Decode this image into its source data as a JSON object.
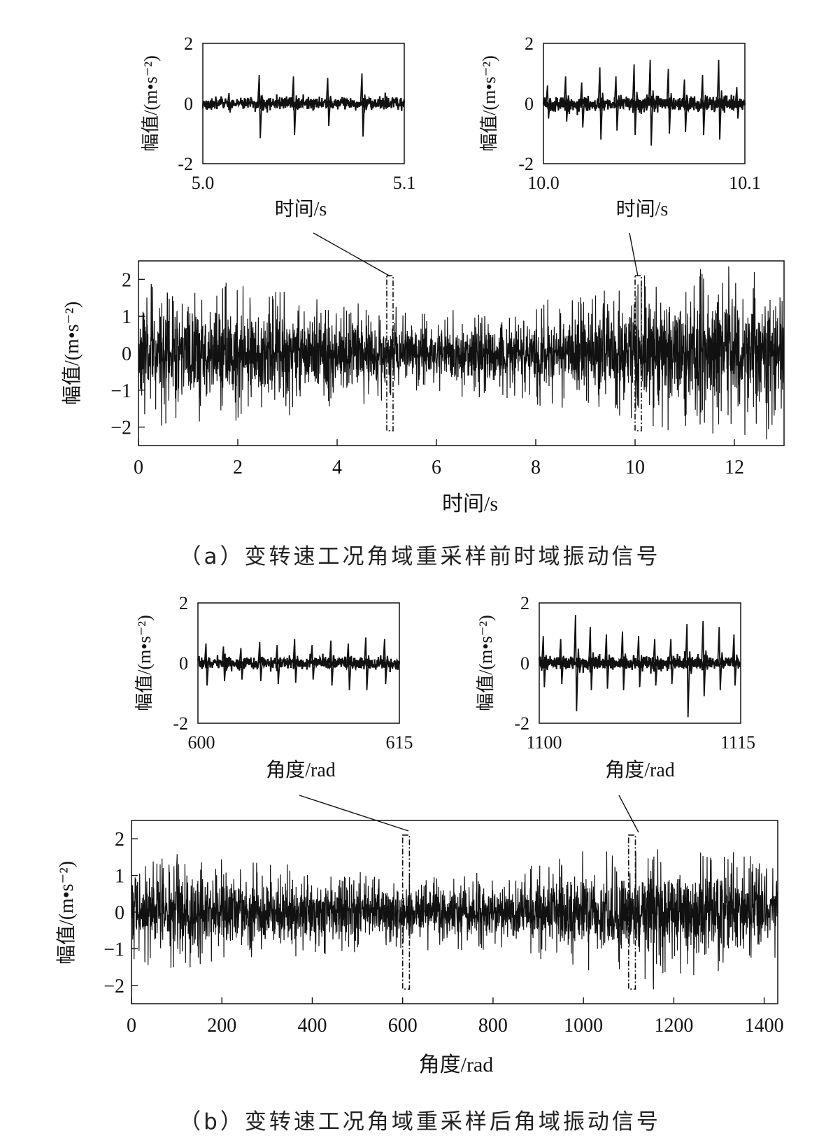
{
  "panels": [
    {
      "id": "a",
      "caption": "（a）变转速工况角域重采样前时域振动信号",
      "main": {
        "type": "line",
        "xlabel": "时间/s",
        "ylabel": "幅值/(m•s⁻²)",
        "xlim": [
          0,
          13
        ],
        "ylim": [
          -2.5,
          2.5
        ],
        "xticks": [
          0,
          2,
          4,
          6,
          8,
          10,
          12
        ],
        "yticks": [
          -2,
          -1,
          0,
          1,
          2
        ],
        "highlight_windows": [
          [
            5.0,
            5.1
          ],
          [
            10.0,
            10.1
          ]
        ],
        "envelope": {
          "x": [
            0,
            1,
            2,
            3,
            4,
            5,
            6,
            7,
            8,
            9,
            10,
            11,
            12,
            13
          ],
          "amplitude": [
            1.45,
            1.5,
            1.4,
            1.25,
            1.1,
            0.95,
            0.85,
            0.9,
            1.05,
            1.25,
            1.45,
            1.65,
            1.8,
            1.9
          ]
        }
      },
      "insets": [
        {
          "type": "line",
          "xlabel": "时间/s",
          "ylabel": "幅值/(m•s⁻²)",
          "xlim": [
            5.0,
            5.1
          ],
          "ylim": [
            -2,
            2
          ],
          "xticks": [
            "5.0",
            "5.1"
          ],
          "yticks": [
            -2,
            0,
            2
          ],
          "impulses": [
            {
              "x": 5.013,
              "up": 0.35,
              "down": -0.3
            },
            {
              "x": 5.028,
              "up": 0.95,
              "down": -1.15
            },
            {
              "x": 5.045,
              "up": 0.9,
              "down": -1.05
            },
            {
              "x": 5.062,
              "up": 0.85,
              "down": -0.75
            },
            {
              "x": 5.079,
              "up": 1.0,
              "down": -1.1
            }
          ],
          "noise": 0.1
        },
        {
          "type": "line",
          "xlabel": "时间/s",
          "ylabel": "幅值/(m•s⁻²)",
          "xlim": [
            10.0,
            10.1
          ],
          "ylim": [
            -2,
            2
          ],
          "xticks": [
            "10.0",
            "10.1"
          ],
          "yticks": [
            -2,
            0,
            2
          ],
          "impulses": [
            {
              "x": 10.002,
              "up": 0.6,
              "down": -0.5
            },
            {
              "x": 10.011,
              "up": 0.9,
              "down": -0.6
            },
            {
              "x": 10.019,
              "up": 0.7,
              "down": -0.8
            },
            {
              "x": 10.028,
              "up": 1.2,
              "down": -1.2
            },
            {
              "x": 10.036,
              "up": 0.9,
              "down": -0.9
            },
            {
              "x": 10.045,
              "up": 1.3,
              "down": -1.05
            },
            {
              "x": 10.053,
              "up": 1.45,
              "down": -1.4
            },
            {
              "x": 10.062,
              "up": 1.15,
              "down": -1.0
            },
            {
              "x": 10.07,
              "up": 0.8,
              "down": -0.95
            },
            {
              "x": 10.079,
              "up": 0.95,
              "down": -1.05
            },
            {
              "x": 10.087,
              "up": 1.45,
              "down": -1.2
            },
            {
              "x": 10.096,
              "up": 0.55,
              "down": -0.5
            }
          ],
          "noise": 0.12
        }
      ]
    },
    {
      "id": "b",
      "caption": "（b）变转速工况角域重采样后角域振动信号",
      "main": {
        "type": "line",
        "xlabel": "角度/rad",
        "ylabel": "幅值/(m•s⁻²)",
        "xlim": [
          0,
          1430
        ],
        "ylim": [
          -2.5,
          2.5
        ],
        "xticks": [
          0,
          200,
          400,
          600,
          800,
          1000,
          1200,
          1400
        ],
        "yticks": [
          -2,
          -1,
          0,
          1,
          2
        ],
        "highlight_windows": [
          [
            600,
            615
          ],
          [
            1100,
            1115
          ]
        ],
        "envelope": {
          "x": [
            0,
            110,
            220,
            330,
            440,
            550,
            660,
            770,
            880,
            990,
            1100,
            1210,
            1320,
            1430
          ],
          "amplitude": [
            1.1,
            1.2,
            1.15,
            1.0,
            0.9,
            0.8,
            0.75,
            0.8,
            0.95,
            1.2,
            1.35,
            1.4,
            1.25,
            1.1
          ]
        }
      },
      "insets": [
        {
          "type": "line",
          "xlabel": "角度/rad",
          "ylabel": "幅值/(m•s⁻²)",
          "xlim": [
            600,
            615
          ],
          "ylim": [
            -2,
            2
          ],
          "xticks": [
            "600",
            "615"
          ],
          "yticks": [
            -2,
            0,
            2
          ],
          "impulses": [
            {
              "x": 600.6,
              "up": 0.65,
              "down": -0.75
            },
            {
              "x": 601.9,
              "up": 0.55,
              "down": -0.6
            },
            {
              "x": 603.2,
              "up": 0.5,
              "down": -0.55
            },
            {
              "x": 604.6,
              "up": 0.7,
              "down": -0.6
            },
            {
              "x": 605.9,
              "up": 0.6,
              "down": -0.7
            },
            {
              "x": 607.2,
              "up": 0.8,
              "down": -0.65
            },
            {
              "x": 608.5,
              "up": 0.6,
              "down": -0.55
            },
            {
              "x": 609.9,
              "up": 0.75,
              "down": -0.75
            },
            {
              "x": 611.2,
              "up": 0.65,
              "down": -0.9
            },
            {
              "x": 612.5,
              "up": 0.85,
              "down": -0.9
            },
            {
              "x": 613.9,
              "up": 0.8,
              "down": -0.7
            }
          ],
          "noise": 0.1
        },
        {
          "type": "line",
          "xlabel": "角度/rad",
          "ylabel": "幅值/(m•s⁻²)",
          "xlim": [
            1100,
            1115
          ],
          "ylim": [
            -2,
            2
          ],
          "xticks": [
            "1100",
            "1115"
          ],
          "yticks": [
            -2,
            0,
            2
          ],
          "impulses": [
            {
              "x": 1100.3,
              "up": 0.9,
              "down": -0.8
            },
            {
              "x": 1101.6,
              "up": 0.8,
              "down": -0.7
            },
            {
              "x": 1102.7,
              "up": 1.6,
              "down": -1.6
            },
            {
              "x": 1103.8,
              "up": 1.2,
              "down": -0.9
            },
            {
              "x": 1105.0,
              "up": 0.95,
              "down": -0.85
            },
            {
              "x": 1106.2,
              "up": 1.05,
              "down": -0.9
            },
            {
              "x": 1107.4,
              "up": 0.9,
              "down": -0.8
            },
            {
              "x": 1108.6,
              "up": 0.8,
              "down": -0.75
            },
            {
              "x": 1109.8,
              "up": 0.8,
              "down": -0.7
            },
            {
              "x": 1111.0,
              "up": 1.3,
              "down": -1.8
            },
            {
              "x": 1112.2,
              "up": 1.4,
              "down": -1.1
            },
            {
              "x": 1113.4,
              "up": 1.2,
              "down": -0.9
            },
            {
              "x": 1114.5,
              "up": 0.95,
              "down": -0.75
            }
          ],
          "noise": 0.12
        }
      ]
    }
  ]
}
